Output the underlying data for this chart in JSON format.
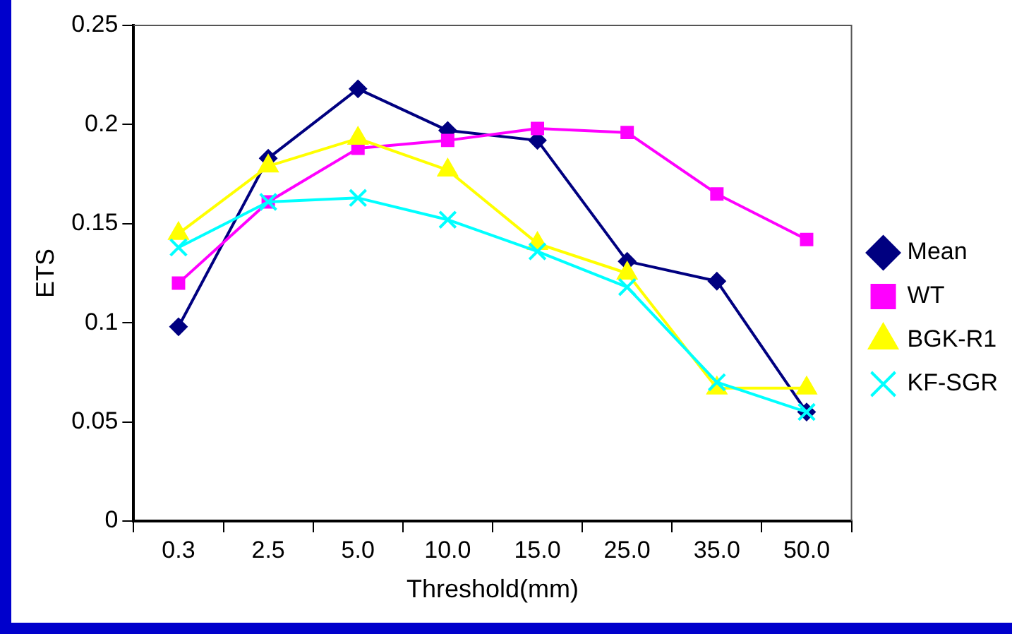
{
  "chart_data": {
    "type": "line",
    "xlabel": "Threshold(mm)",
    "ylabel": "ETS",
    "categories": [
      "0.3",
      "2.5",
      "5.0",
      "10.0",
      "15.0",
      "25.0",
      "35.0",
      "50.0"
    ],
    "ylim": [
      0,
      0.25
    ],
    "yticks": [
      0,
      0.05,
      0.1,
      0.15,
      0.2,
      0.25
    ],
    "grid": false,
    "legend": "right",
    "line_style": "solid",
    "series": [
      {
        "name": "Mean",
        "color": "#000080",
        "marker": "diamond",
        "values": [
          0.098,
          0.183,
          0.218,
          0.197,
          0.192,
          0.131,
          0.121,
          0.055
        ]
      },
      {
        "name": "WT",
        "color": "#ff00ff",
        "marker": "square",
        "values": [
          0.12,
          0.161,
          0.188,
          0.192,
          0.198,
          0.196,
          0.165,
          0.142
        ]
      },
      {
        "name": "BGK-R1",
        "color": "#ffff00",
        "marker": "triangle",
        "values": [
          0.145,
          0.179,
          0.193,
          0.177,
          0.14,
          0.125,
          0.067,
          0.067
        ]
      },
      {
        "name": "KF-SGR",
        "color": "#00ffff",
        "marker": "cross",
        "values": [
          0.138,
          0.161,
          0.163,
          0.152,
          0.136,
          0.118,
          0.07,
          0.055
        ]
      }
    ]
  }
}
